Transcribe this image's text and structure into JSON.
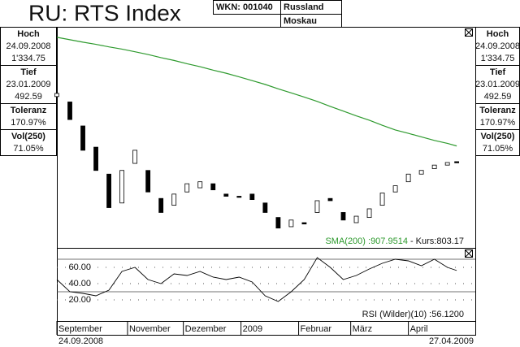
{
  "header": {
    "title": "RU: RTS Index",
    "wkn": "WKN: 001040",
    "country": "Russland",
    "exchange": "Moskau"
  },
  "stats": [
    {
      "label": "Hoch",
      "date": "24.09.2008",
      "value": "1'334.75"
    },
    {
      "label": "Tief",
      "date": "23.01.2009",
      "value": "492.59"
    },
    {
      "label": "Toleranz",
      "value": "170.97%"
    },
    {
      "label": "Vol(250)",
      "value": "71.05%"
    }
  ],
  "chart_data": [
    {
      "type": "candlestick",
      "log": true,
      "ylim": [
        446,
        2120
      ],
      "xlim": [
        "2008-09-24",
        "2009-05-07"
      ],
      "x": [
        "2008-09-24",
        "2008-10-01",
        "2008-10-08",
        "2008-10-15",
        "2008-10-22",
        "2008-10-29",
        "2008-11-05",
        "2008-11-12",
        "2008-11-19",
        "2008-11-26",
        "2008-12-03",
        "2008-12-10",
        "2008-12-17",
        "2008-12-24",
        "2008-12-31",
        "2009-01-07",
        "2009-01-14",
        "2009-01-21",
        "2009-01-28",
        "2009-02-04",
        "2009-02-11",
        "2009-02-18",
        "2009-02-25",
        "2009-03-04",
        "2009-03-11",
        "2009-03-18",
        "2009-03-25",
        "2009-04-01",
        "2009-04-08",
        "2009-04-15",
        "2009-04-22",
        "2009-04-27"
      ],
      "open": [
        1300,
        1250,
        1050,
        900,
        740,
        600,
        800,
        760,
        620,
        590,
        650,
        670,
        690,
        640,
        630,
        640,
        600,
        540,
        505,
        520,
        560,
        620,
        560,
        520,
        540,
        590,
        650,
        700,
        740,
        770,
        790,
        810
      ],
      "close": [
        1330,
        1100,
        880,
        760,
        580,
        760,
        880,
        650,
        560,
        640,
        690,
        700,
        660,
        630,
        625,
        615,
        560,
        500,
        530,
        515,
        610,
        610,
        530,
        545,
        575,
        645,
        680,
        740,
        760,
        790,
        805,
        803.17
      ],
      "up_color": "#ffffff",
      "down_color": "#000000",
      "series": [
        {
          "color": "#2e9a2e",
          "values": [
            2000,
            1965,
            1930,
            1900,
            1865,
            1835,
            1800,
            1765,
            1725,
            1690,
            1650,
            1615,
            1575,
            1540,
            1500,
            1460,
            1420,
            1375,
            1335,
            1295,
            1255,
            1210,
            1170,
            1130,
            1095,
            1055,
            1020,
            995,
            970,
            945,
            925,
            907.9514
          ]
        }
      ],
      "sma_label": "SMA(200) :907.9514",
      "price_label": "- Kurs:803.17"
    },
    {
      "type": "line",
      "ylim": [
        0,
        83
      ],
      "yticks": [
        {
          "value": 20,
          "label": "20.00"
        },
        {
          "value": 40,
          "label": "40.00"
        },
        {
          "value": 60,
          "label": "60.00"
        }
      ],
      "levels": [
        30,
        70
      ],
      "grid": true,
      "series": [
        {
          "color": "#000000",
          "values": [
            45,
            30,
            28,
            25,
            32,
            55,
            60,
            45,
            40,
            52,
            50,
            55,
            48,
            45,
            48,
            42,
            25,
            18,
            30,
            45,
            72,
            60,
            45,
            50,
            58,
            65,
            70,
            68,
            62,
            70,
            60,
            56.12
          ]
        }
      ],
      "label": "RSI (Wilder)(10) :56.1200",
      "xticks": [
        {
          "value": "2008-09-24",
          "label": "September"
        },
        {
          "value": "2008-11-01",
          "label": "November"
        },
        {
          "value": "2008-12-01",
          "label": "Dezember"
        },
        {
          "value": "2009-01-01",
          "label": "2009"
        },
        {
          "value": "2009-02-01",
          "label": "Februar"
        },
        {
          "value": "2009-03-01",
          "label": "März"
        },
        {
          "value": "2009-04-01",
          "label": "April"
        }
      ]
    }
  ],
  "footer": {
    "start": "24.09.2008",
    "end": "27.04.2009"
  }
}
